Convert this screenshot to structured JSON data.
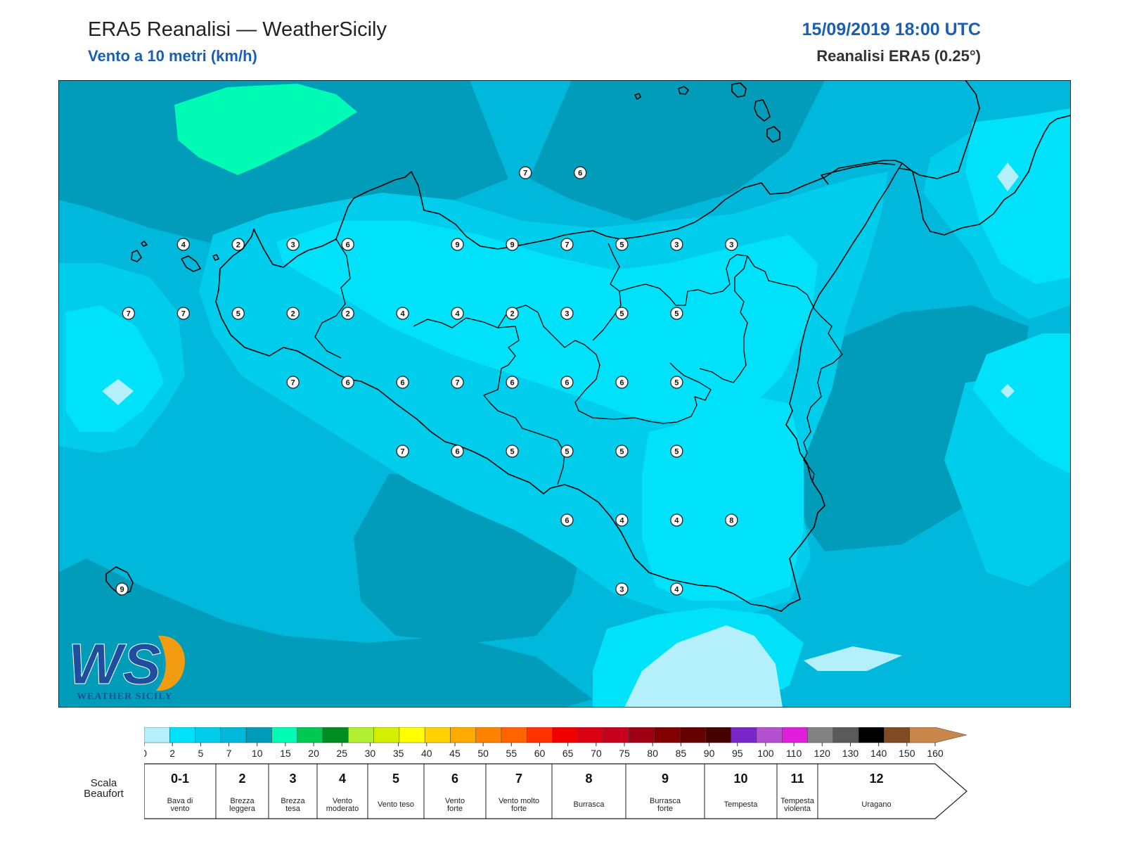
{
  "header": {
    "title": "ERA5 Reanalisi — WeatherSicily",
    "subtitle": "Vento a 10 metri (km/h)",
    "datetime": "15/09/2019 18:00 UTC",
    "source": "Reanalisi ERA5 (0.25°)"
  },
  "logo": {
    "initials": "WS",
    "text": "WEATHER SICILY"
  },
  "palette": {
    "lightest": "#b3f0fb",
    "level2": "#00e1fa",
    "level5": "#00cdec",
    "level7": "#00b8dc",
    "level10": "#009cba",
    "level15": "#00fcb4",
    "coast": "#000000"
  },
  "stations": [
    {
      "value": "7",
      "lat": 38.26,
      "lon": 15.62
    },
    {
      "value": "6",
      "lat": 38.26,
      "lon": 16.12
    },
    {
      "value": "4",
      "lat": 38.0,
      "lon": 12.5
    },
    {
      "value": "2",
      "lat": 38.0,
      "lon": 13.0
    },
    {
      "value": "3",
      "lat": 38.0,
      "lon": 13.5
    },
    {
      "value": "6",
      "lat": 38.0,
      "lon": 14.0
    },
    {
      "value": "9",
      "lat": 38.0,
      "lon": 15.0
    },
    {
      "value": "9",
      "lat": 38.0,
      "lon": 15.5
    },
    {
      "value": "7",
      "lat": 38.0,
      "lon": 16.0
    },
    {
      "value": "5",
      "lat": 38.0,
      "lon": 16.5
    },
    {
      "value": "3",
      "lat": 38.0,
      "lon": 17.0
    },
    {
      "value": "3",
      "lat": 38.0,
      "lon": 17.5
    },
    {
      "value": "7",
      "lat": 37.75,
      "lon": 12.0
    },
    {
      "value": "7",
      "lat": 37.75,
      "lon": 12.5
    },
    {
      "value": "5",
      "lat": 37.75,
      "lon": 13.0
    },
    {
      "value": "2",
      "lat": 37.75,
      "lon": 13.5
    },
    {
      "value": "2",
      "lat": 37.75,
      "lon": 14.0
    },
    {
      "value": "4",
      "lat": 37.75,
      "lon": 14.5
    },
    {
      "value": "4",
      "lat": 37.75,
      "lon": 15.0
    },
    {
      "value": "2",
      "lat": 37.75,
      "lon": 15.5
    },
    {
      "value": "3",
      "lat": 37.75,
      "lon": 16.0
    },
    {
      "value": "5",
      "lat": 37.75,
      "lon": 16.5
    },
    {
      "value": "5",
      "lat": 37.75,
      "lon": 17.0
    },
    {
      "value": "7",
      "lat": 37.5,
      "lon": 13.5
    },
    {
      "value": "6",
      "lat": 37.5,
      "lon": 14.0
    },
    {
      "value": "6",
      "lat": 37.5,
      "lon": 14.5
    },
    {
      "value": "7",
      "lat": 37.5,
      "lon": 15.0
    },
    {
      "value": "6",
      "lat": 37.5,
      "lon": 15.5
    },
    {
      "value": "6",
      "lat": 37.5,
      "lon": 16.0
    },
    {
      "value": "6",
      "lat": 37.5,
      "lon": 16.5
    },
    {
      "value": "5",
      "lat": 37.5,
      "lon": 17.0
    },
    {
      "value": "7",
      "lat": 37.25,
      "lon": 14.5
    },
    {
      "value": "6",
      "lat": 37.25,
      "lon": 15.0
    },
    {
      "value": "5",
      "lat": 37.25,
      "lon": 15.5
    },
    {
      "value": "5",
      "lat": 37.25,
      "lon": 16.0
    },
    {
      "value": "5",
      "lat": 37.25,
      "lon": 16.5
    },
    {
      "value": "5",
      "lat": 37.25,
      "lon": 17.0
    },
    {
      "value": "6",
      "lat": 37.0,
      "lon": 16.0
    },
    {
      "value": "4",
      "lat": 37.0,
      "lon": 16.5
    },
    {
      "value": "4",
      "lat": 37.0,
      "lon": 17.0
    },
    {
      "value": "8",
      "lat": 37.0,
      "lon": 17.5
    },
    {
      "value": "9",
      "lat": 36.75,
      "lon": 11.94
    },
    {
      "value": "3",
      "lat": 36.75,
      "lon": 16.5
    },
    {
      "value": "4",
      "lat": 36.75,
      "lon": 17.0
    }
  ],
  "colorbar": {
    "ticks": [
      "0",
      "2",
      "5",
      "7",
      "10",
      "15",
      "20",
      "25",
      "30",
      "35",
      "40",
      "45",
      "50",
      "55",
      "60",
      "65",
      "70",
      "75",
      "80",
      "85",
      "90",
      "95",
      "100",
      "110",
      "120",
      "130",
      "140",
      "150",
      "160"
    ],
    "colors": [
      "#b3f0fb",
      "#00e1fa",
      "#00cdec",
      "#00b8dc",
      "#009cba",
      "#00fcb4",
      "#00c850",
      "#008c1e",
      "#b4f032",
      "#d2f000",
      "#ffff00",
      "#ffd200",
      "#ffaa00",
      "#ff8200",
      "#ff6400",
      "#ff3200",
      "#f00000",
      "#dc0014",
      "#c8001e",
      "#a00014",
      "#820000",
      "#640000",
      "#460000",
      "#7828c8",
      "#b450d2",
      "#e11edc",
      "#828282",
      "#5a5a5a",
      "#000000",
      "#7f4a24",
      "#c8864b"
    ]
  },
  "beaufort": {
    "label": "Scala Beaufort",
    "classes": [
      {
        "num": "0-1",
        "desc": [
          "Bava di",
          "vento"
        ]
      },
      {
        "num": "2",
        "desc": [
          "Brezza",
          "leggera"
        ]
      },
      {
        "num": "3",
        "desc": [
          "Brezza",
          "tesa"
        ]
      },
      {
        "num": "4",
        "desc": [
          "Vento",
          "moderato"
        ]
      },
      {
        "num": "5",
        "desc": [
          "Vento teso"
        ]
      },
      {
        "num": "6",
        "desc": [
          "Vento",
          "forte"
        ]
      },
      {
        "num": "7",
        "desc": [
          "Vento molto",
          "forte"
        ]
      },
      {
        "num": "8",
        "desc": [
          "Burrasca"
        ]
      },
      {
        "num": "9",
        "desc": [
          "Burrasca",
          "forte"
        ]
      },
      {
        "num": "10",
        "desc": [
          "Tempesta"
        ]
      },
      {
        "num": "11",
        "desc": [
          "Tempesta",
          "violenta"
        ]
      },
      {
        "num": "12",
        "desc": [
          "Uragano"
        ]
      }
    ]
  }
}
